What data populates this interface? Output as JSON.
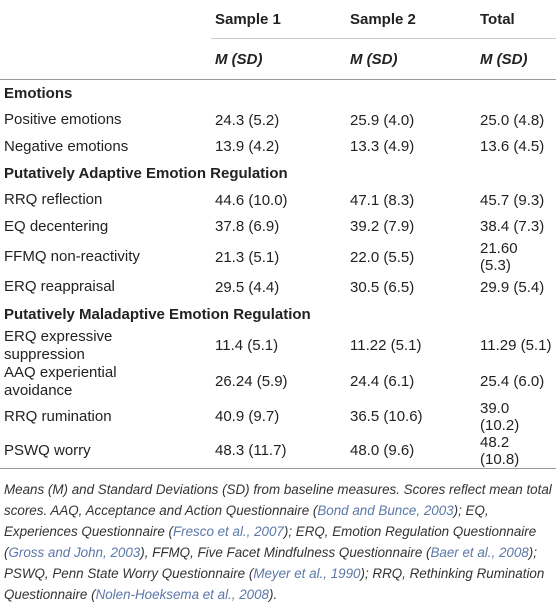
{
  "table": {
    "columns": [
      "Sample 1",
      "Sample 2",
      "Total"
    ],
    "subheader": [
      "M (SD)",
      "M (SD)",
      "M (SD)"
    ],
    "sections": [
      {
        "title": "Emotions",
        "rows": [
          [
            "Positive emotions",
            "24.3 (5.2)",
            "25.9 (4.0)",
            "25.0 (4.8)"
          ],
          [
            "Negative emotions",
            "13.9 (4.2)",
            "13.3 (4.9)",
            "13.6 (4.5)"
          ]
        ]
      },
      {
        "title": "Putatively Adaptive Emotion Regulation",
        "rows": [
          [
            "RRQ reflection",
            "44.6 (10.0)",
            "47.1 (8.3)",
            "45.7 (9.3)"
          ],
          [
            "EQ decentering",
            "37.8 (6.9)",
            "39.2 (7.9)",
            "38.4 (7.3)"
          ],
          [
            "FFMQ non-reactivity",
            "21.3 (5.1)",
            "22.0 (5.5)",
            "21.60 (5.3)"
          ],
          [
            "ERQ reappraisal",
            "29.5 (4.4)",
            "30.5 (6.5)",
            "29.9 (5.4)"
          ]
        ]
      },
      {
        "title": "Putatively Maladaptive Emotion Regulation",
        "rows": [
          [
            "ERQ expressive suppression",
            "11.4 (5.1)",
            "11.22 (5.1)",
            "11.29 (5.1)"
          ],
          [
            "AAQ experiential avoidance",
            "26.24 (5.9)",
            "24.4 (6.1)",
            "25.4 (6.0)"
          ],
          [
            "RRQ rumination",
            "40.9 (9.7)",
            "36.5 (10.6)",
            "39.0 (10.2)"
          ],
          [
            "PSWQ worry",
            "48.3 (11.7)",
            "48.0 (9.6)",
            "48.2 (10.8)"
          ]
        ]
      }
    ],
    "footnote": [
      "Means (M) and Standard Deviations (SD) from baseline measures. Scores reflect mean total scores. AAQ, Acceptance and Action Questionnaire (",
      "Bond and Bunce, 2003",
      "); EQ, Experiences Questionnaire (",
      "Fresco et al., 2007",
      "); ERQ, Emotion Regulation Questionnaire (",
      "Gross and John, 2003",
      "), FFMQ, Five Facet Mindfulness Questionnaire (",
      "Baer et al., 2008",
      "); PSWQ, Penn State Worry Questionnaire (",
      "Meyer et al., 1990",
      "); RRQ, Rethinking Rumination Questionnaire (",
      "Nolen-Hoeksema et al., 2008",
      ")."
    ]
  }
}
